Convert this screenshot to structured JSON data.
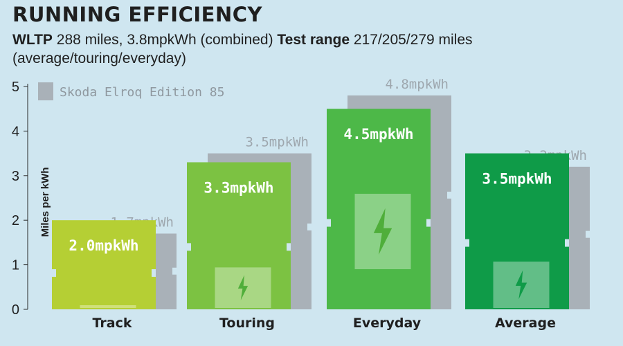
{
  "header": {
    "title": "RUNNING EFFICIENCY",
    "sub_bold_1": "WLTP",
    "sub_text_1": " 288 miles, 3.8mpkWh (combined) ",
    "sub_bold_2": "Test range",
    "sub_text_2": " 217/205/279 miles (average/touring/everyday)"
  },
  "colors": {
    "background": "#cfe6f0",
    "reference": "#a9b1b8",
    "track": "#b5cf34",
    "touring": "#7cc242",
    "everyday": "#4db848",
    "average": "#0f9b48"
  },
  "chart_data": {
    "type": "bar",
    "ylabel": "Miles per kWh",
    "ylim": [
      0,
      5
    ],
    "yticks": [
      "0",
      "1",
      "2",
      "3",
      "4",
      "5"
    ],
    "categories": [
      "Track",
      "Touring",
      "Everyday",
      "Average"
    ],
    "series": [
      {
        "values": [
          2.0,
          3.3,
          4.5,
          3.5
        ],
        "labels": [
          "2.0mpkWh",
          "3.3mpkWh",
          "4.5mpkWh",
          "3.5mpkWh"
        ]
      },
      {
        "name": "Skoda Elroq Edition 85",
        "values": [
          1.7,
          3.5,
          4.8,
          3.2
        ],
        "labels": [
          "1.7mpkWh",
          "3.5mpkWh",
          "4.8mpkWh",
          "3.2mpkWh"
        ]
      }
    ],
    "legend": "top-left",
    "grid": false
  }
}
